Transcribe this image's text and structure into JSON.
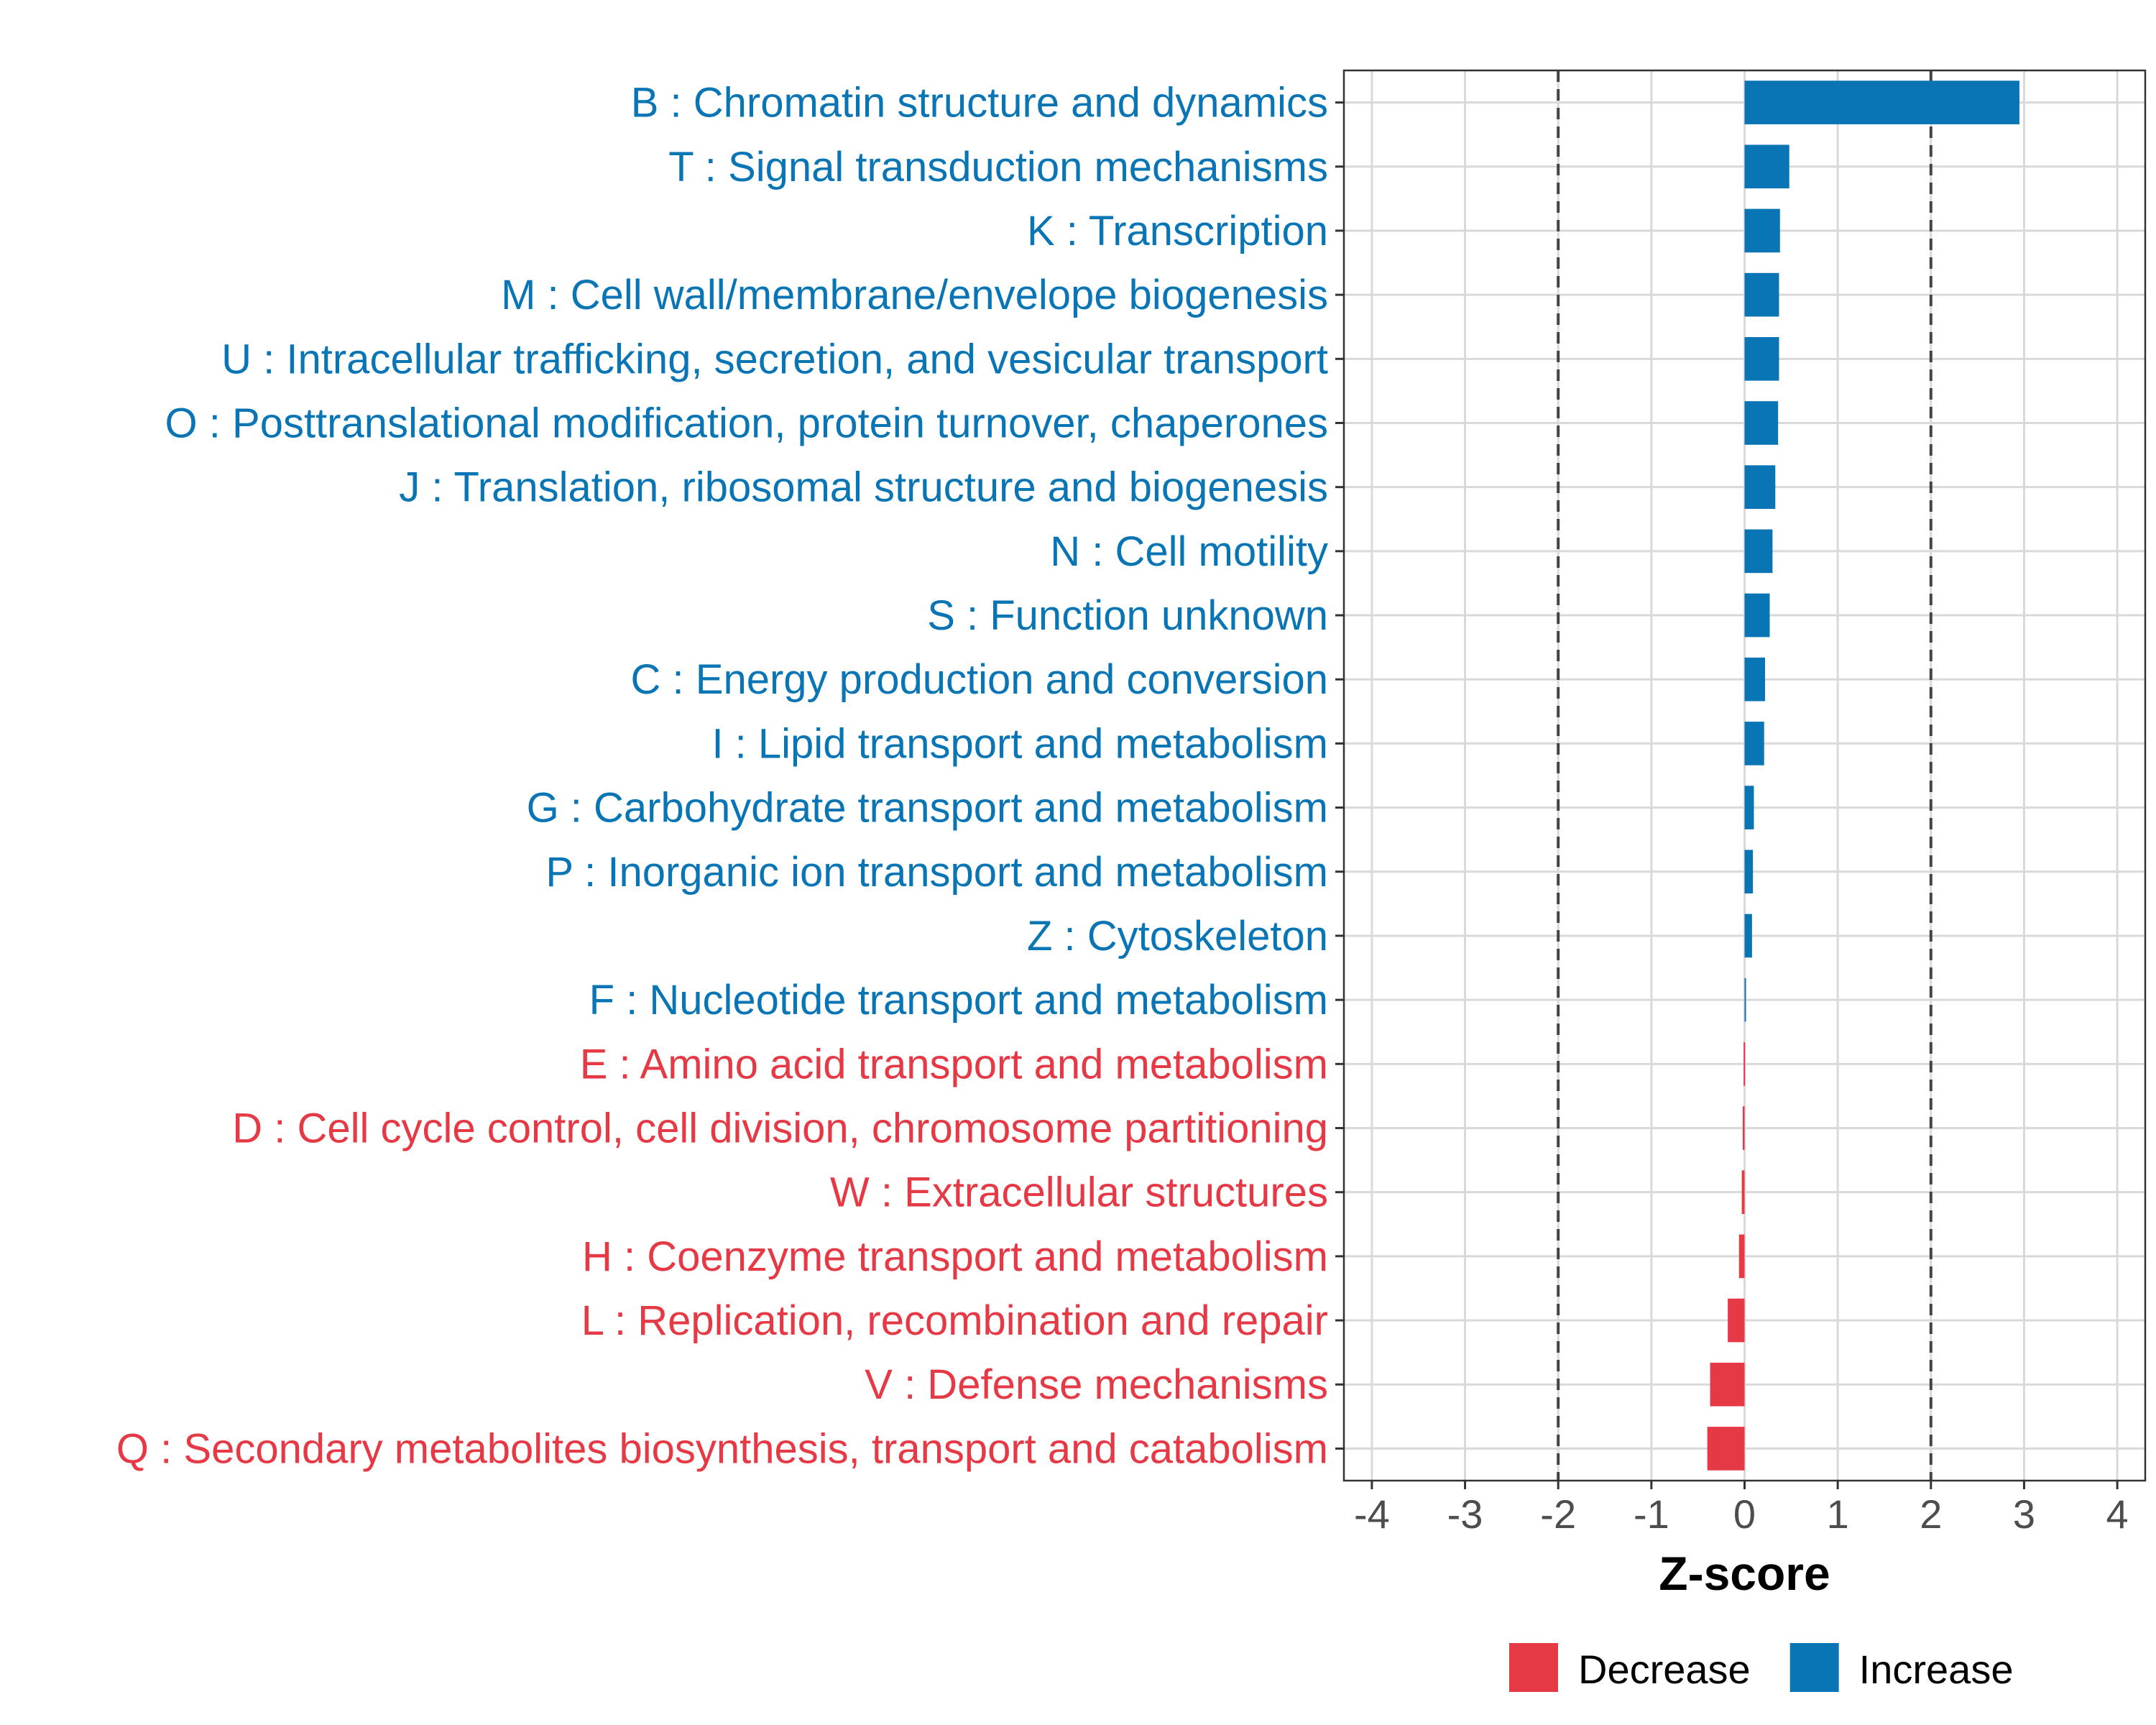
{
  "chart_data": {
    "type": "bar",
    "orientation": "horizontal",
    "title": "",
    "xlabel": "Z-score",
    "ylabel": "",
    "xlim": [
      -4.3,
      4.3
    ],
    "xticks": [
      -4,
      -3,
      -2,
      -1,
      0,
      1,
      2,
      3,
      4
    ],
    "xtick_labels": [
      "-4",
      "-3",
      "-2",
      "-1",
      "0",
      "1",
      "2",
      "3",
      "4"
    ],
    "reference_lines": [
      -2,
      2
    ],
    "grid": true,
    "legend_position": "bottom",
    "colors": {
      "Decrease": "#e63946",
      "Increase": "#0a75b4"
    },
    "legend": [
      {
        "label": "Decrease",
        "color": "#e63946"
      },
      {
        "label": "Increase",
        "color": "#0a75b4"
      }
    ],
    "categories": [
      "B : Chromatin structure and dynamics",
      "T : Signal transduction mechanisms",
      "K : Transcription",
      "M : Cell wall/membrane/envelope biogenesis",
      "U : Intracellular trafficking, secretion, and vesicular transport",
      "O : Posttranslational modification, protein turnover, chaperones",
      "J : Translation, ribosomal structure and biogenesis",
      "N : Cell motility",
      "S : Function unknown",
      "C : Energy production and conversion",
      "I : Lipid transport and metabolism",
      "G : Carbohydrate transport and metabolism",
      "P : Inorganic ion transport and metabolism",
      "Z : Cytoskeleton",
      "F : Nucleotide transport and metabolism",
      "E : Amino acid transport and metabolism",
      "D : Cell cycle control, cell division, chromosome partitioning",
      "W : Extracellular structures",
      "H : Coenzyme transport and metabolism",
      "L : Replication, recombination and repair",
      "V : Defense mechanisms",
      "Q : Secondary metabolites biosynthesis, transport and catabolism"
    ],
    "values": [
      2.95,
      0.48,
      0.38,
      0.37,
      0.37,
      0.36,
      0.33,
      0.3,
      0.27,
      0.22,
      0.21,
      0.1,
      0.09,
      0.08,
      0.01,
      -0.01,
      -0.02,
      -0.03,
      -0.06,
      -0.18,
      -0.37,
      -0.4
    ],
    "direction": [
      "Increase",
      "Increase",
      "Increase",
      "Increase",
      "Increase",
      "Increase",
      "Increase",
      "Increase",
      "Increase",
      "Increase",
      "Increase",
      "Increase",
      "Increase",
      "Increase",
      "Increase",
      "Decrease",
      "Decrease",
      "Decrease",
      "Decrease",
      "Decrease",
      "Decrease",
      "Decrease"
    ]
  }
}
